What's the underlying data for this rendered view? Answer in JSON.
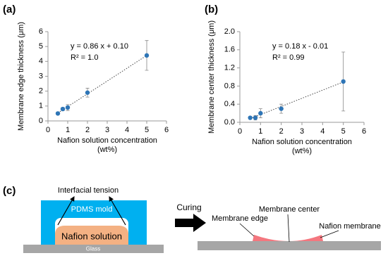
{
  "chart_data": [
    {
      "type": "scatter",
      "label": "(a)",
      "xlabel": "Nafion solution concentration (wt%)",
      "ylabel": "Membrane edge thickness (μm)",
      "x": [
        0.5,
        0.75,
        1,
        2,
        5
      ],
      "series": [
        {
          "color": "#2e75b6",
          "values": [
            0.5,
            0.8,
            0.9,
            1.9,
            4.4
          ],
          "errors": [
            0.05,
            0.1,
            0.2,
            0.3,
            1.0
          ]
        }
      ],
      "xlim": [
        0,
        6
      ],
      "xticks": [
        0,
        1,
        2,
        3,
        4,
        5,
        6
      ],
      "ylim": [
        0,
        6
      ],
      "yticks": [
        0,
        1,
        2,
        3,
        4,
        5,
        6
      ],
      "annotations": [
        "y = 0.86 x + 0.10",
        "R² = 1.0"
      ],
      "trendline": {
        "slope": 0.86,
        "intercept": 0.1
      }
    },
    {
      "type": "scatter",
      "label": "(b)",
      "xlabel": "Nafion solution concentration (wt%)",
      "ylabel": "Membrane center thickness (μm)",
      "x": [
        0.5,
        0.75,
        1,
        2,
        5
      ],
      "series": [
        {
          "color": "#2e75b6",
          "values": [
            0.1,
            0.1,
            0.2,
            0.3,
            0.9
          ],
          "errors": [
            0.02,
            0.05,
            0.1,
            0.1,
            0.65
          ]
        }
      ],
      "xlim": [
        0,
        6
      ],
      "xticks": [
        0,
        1,
        2,
        3,
        4,
        5,
        6
      ],
      "ylim": [
        0,
        2
      ],
      "yticks": [
        {
          "value": 0,
          "label": "0.0"
        },
        0.4,
        0.8,
        1.2,
        1.6,
        {
          "value": 2,
          "label": "2.0"
        }
      ],
      "annotations": [
        "y = 0.18 x - 0.01",
        "R² = 0.99"
      ],
      "trendline": {
        "slope": 0.18,
        "intercept": -0.01
      }
    }
  ],
  "diagram": {
    "label": "(c)",
    "left": {
      "tension": "Interfacial tension",
      "mold": "PDMS mold",
      "solution": "Nafion solution",
      "substrate": "Glass"
    },
    "arrow": "Curing",
    "right": {
      "edge": "Membrane edge",
      "center": "Membrane center",
      "membrane": "Nafion membrane"
    }
  }
}
